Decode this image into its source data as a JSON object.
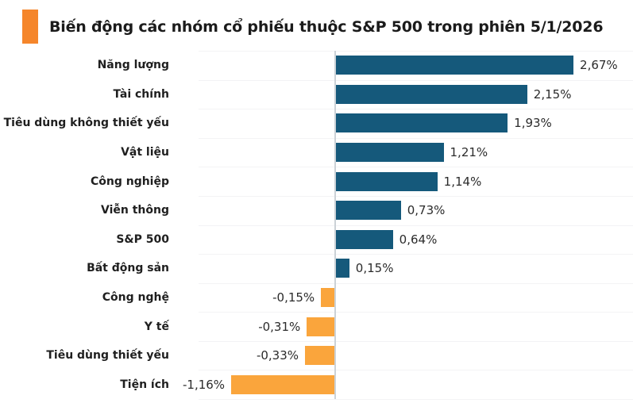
{
  "header": {
    "title": "Biến động các nhóm cổ phiếu thuộc S&P 500 trong phiên 5/1/2026",
    "accent_color": "#f5862b"
  },
  "chart_data": {
    "type": "bar",
    "orientation": "horizontal",
    "title": "Biến động các nhóm cổ phiếu thuộc S&P 500 trong phiên 5/1/2026",
    "categories": [
      "Năng lượng",
      "Tài chính",
      "Tiêu dùng không thiết yếu",
      "Vật liệu",
      "Công nghiệp",
      "Viễn thông",
      "S&P 500",
      "Bất động sản",
      "Công nghệ",
      "Y tế",
      "Tiêu dùng thiết yếu",
      "Tiện ích"
    ],
    "values": [
      2.67,
      2.15,
      1.93,
      1.21,
      1.14,
      0.73,
      0.64,
      0.15,
      -0.15,
      -0.31,
      -0.33,
      -1.16
    ],
    "value_labels": [
      "2,67%",
      "2,15%",
      "1,93%",
      "1,21%",
      "1,14%",
      "0,73%",
      "0,64%",
      "0,15%",
      "-0,15%",
      "-0,31%",
      "-0,33%",
      "-1,16%"
    ],
    "unit": "%",
    "positive_color": "#15597b",
    "negative_color": "#faa53c",
    "baseline": 0,
    "xlim": [
      -1.55,
      3.35
    ],
    "grid": "horizontal-row-separators",
    "legend": "none"
  }
}
